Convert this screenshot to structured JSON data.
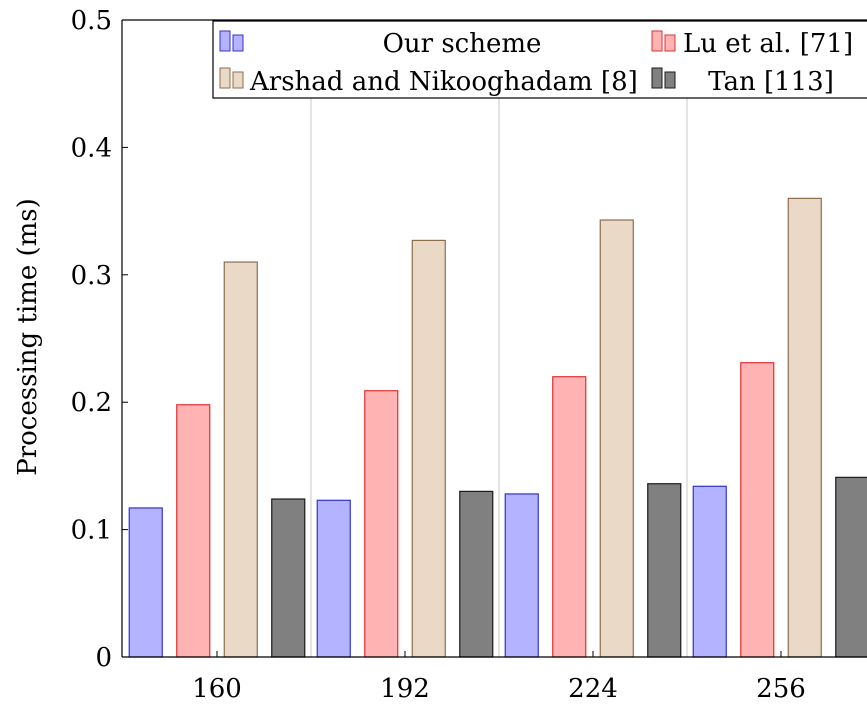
{
  "chart_data": {
    "type": "bar",
    "title": "",
    "xlabel": "",
    "ylabel": "Processing time (ms)",
    "ylim": [
      0,
      0.5
    ],
    "yticks": [
      {
        "value": 0,
        "label": "0"
      },
      {
        "value": 0.1,
        "label": "0.1"
      },
      {
        "value": 0.2,
        "label": "0.2"
      },
      {
        "value": 0.3,
        "label": "0.3"
      },
      {
        "value": 0.4,
        "label": "0.4"
      },
      {
        "value": 0.5,
        "label": "0.5"
      }
    ],
    "categories": [
      "160",
      "192",
      "224",
      "256"
    ],
    "grid": "vertical",
    "legend_position": "top",
    "series": [
      {
        "name": "Our scheme",
        "values": [
          0.117,
          0.123,
          0.128,
          0.134
        ],
        "fill": "#b3b3ff",
        "stroke": "#3333cc"
      },
      {
        "name": "Lu et al. [71]",
        "values": [
          0.198,
          0.209,
          0.22,
          0.231
        ],
        "fill": "#ffb3b3",
        "stroke": "#e03030"
      },
      {
        "name": "Arshad and Nikooghadam [8]",
        "values": [
          0.31,
          0.327,
          0.343,
          0.36
        ],
        "fill": "#ead9c6",
        "stroke": "#8c6e4e"
      },
      {
        "name": "Tan [113]",
        "values": [
          0.124,
          0.13,
          0.136,
          0.141
        ],
        "fill": "#808080",
        "stroke": "#1a1a1a"
      }
    ]
  }
}
